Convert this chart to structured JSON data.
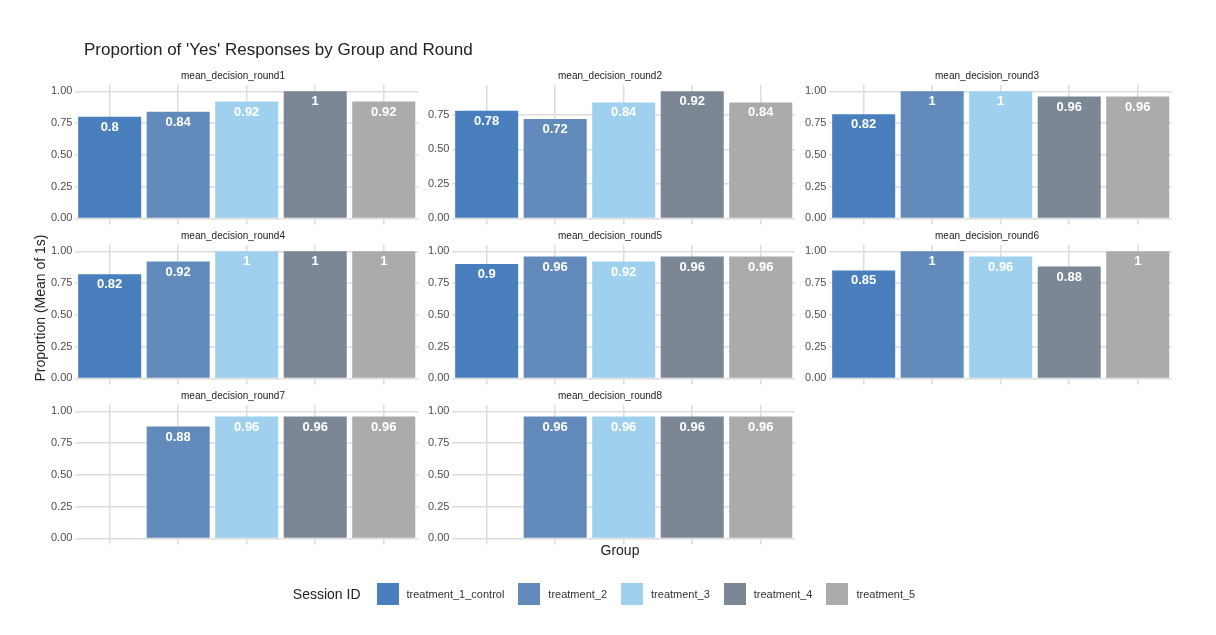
{
  "chart_data": [
    {
      "type": "bar",
      "title": "Proportion of 'Yes' Responses by Group and Round",
      "subtitle": "mean_decision_round1",
      "categories": [
        null,
        null,
        null,
        null,
        null
      ],
      "stacked": true,
      "data_labels": true,
      "grid": true,
      "tick_labels": "y",
      "ylim": [
        0,
        1.05
      ],
      "yticks": [
        {
          "value": 0,
          "label": "0.00"
        },
        {
          "value": 0.25,
          "label": "0.25"
        },
        {
          "value": 0.5,
          "label": "0.50"
        },
        {
          "value": 0.75,
          "label": "0.75"
        },
        {
          "value": 1,
          "label": "1.00"
        }
      ],
      "series": [
        {
          "color": "#4a7fbd",
          "values": [
            0.8,
            null,
            null,
            null,
            null
          ]
        },
        {
          "color": "#628abb",
          "values": [
            null,
            0.84,
            null,
            null,
            null
          ]
        },
        {
          "color": "#9fd1ef",
          "values": [
            null,
            null,
            0.92,
            null,
            null
          ]
        },
        {
          "color": "#7c8796",
          "values": [
            null,
            null,
            null,
            1,
            null
          ]
        },
        {
          "color": "#ababab",
          "values": [
            null,
            null,
            null,
            null,
            0.92
          ]
        }
      ]
    },
    {
      "type": "bar",
      "subtitle": "mean_decision_round2",
      "categories": [
        null,
        null,
        null,
        null,
        null
      ],
      "stacked": true,
      "data_labels": true,
      "grid": true,
      "tick_labels": "y",
      "ylim": [
        0,
        0.966
      ],
      "yticks": [
        {
          "value": 0,
          "label": "0.00"
        },
        {
          "value": 0.25,
          "label": "0.25"
        },
        {
          "value": 0.5,
          "label": "0.50"
        },
        {
          "value": 0.75,
          "label": "0.75"
        }
      ],
      "series": [
        {
          "color": "#4a7fbd",
          "values": [
            0.78,
            null,
            null,
            null,
            null
          ]
        },
        {
          "color": "#628abb",
          "values": [
            null,
            0.72,
            null,
            null,
            null
          ]
        },
        {
          "color": "#9fd1ef",
          "values": [
            null,
            null,
            0.84,
            null,
            null
          ]
        },
        {
          "color": "#7c8796",
          "values": [
            null,
            null,
            null,
            0.92,
            null
          ]
        },
        {
          "color": "#ababab",
          "values": [
            null,
            null,
            null,
            null,
            0.84
          ]
        }
      ]
    },
    {
      "type": "bar",
      "subtitle": "mean_decision_round3",
      "categories": [
        null,
        null,
        null,
        null,
        null
      ],
      "stacked": true,
      "data_labels": true,
      "grid": true,
      "tick_labels": "y",
      "ylim": [
        0,
        1.05
      ],
      "yticks": [
        {
          "value": 0,
          "label": "0.00"
        },
        {
          "value": 0.25,
          "label": "0.25"
        },
        {
          "value": 0.5,
          "label": "0.50"
        },
        {
          "value": 0.75,
          "label": "0.75"
        },
        {
          "value": 1,
          "label": "1.00"
        }
      ],
      "series": [
        {
          "color": "#4a7fbd",
          "values": [
            0.82,
            null,
            null,
            null,
            null
          ]
        },
        {
          "color": "#628abb",
          "values": [
            null,
            1,
            null,
            null,
            null
          ]
        },
        {
          "color": "#9fd1ef",
          "values": [
            null,
            null,
            1,
            null,
            null
          ]
        },
        {
          "color": "#7c8796",
          "values": [
            null,
            null,
            null,
            0.96,
            null
          ]
        },
        {
          "color": "#ababab",
          "values": [
            null,
            null,
            null,
            null,
            0.96
          ]
        }
      ]
    },
    {
      "type": "bar",
      "subtitle": "mean_decision_round4",
      "ylabel": "Proportion (Mean of 1s)",
      "categories": [
        null,
        null,
        null,
        null,
        null
      ],
      "stacked": true,
      "data_labels": true,
      "grid": true,
      "tick_labels": "y",
      "ylim": [
        0,
        1.05
      ],
      "yticks": [
        {
          "value": 0,
          "label": "0.00"
        },
        {
          "value": 0.25,
          "label": "0.25"
        },
        {
          "value": 0.5,
          "label": "0.50"
        },
        {
          "value": 0.75,
          "label": "0.75"
        },
        {
          "value": 1,
          "label": "1.00"
        }
      ],
      "series": [
        {
          "color": "#4a7fbd",
          "values": [
            0.82,
            null,
            null,
            null,
            null
          ]
        },
        {
          "color": "#628abb",
          "values": [
            null,
            0.92,
            null,
            null,
            null
          ]
        },
        {
          "color": "#9fd1ef",
          "values": [
            null,
            null,
            1,
            null,
            null
          ]
        },
        {
          "color": "#7c8796",
          "values": [
            null,
            null,
            null,
            1,
            null
          ]
        },
        {
          "color": "#ababab",
          "values": [
            null,
            null,
            null,
            null,
            1
          ]
        }
      ]
    },
    {
      "type": "bar",
      "subtitle": "mean_decision_round5",
      "categories": [
        null,
        null,
        null,
        null,
        null
      ],
      "stacked": true,
      "data_labels": true,
      "grid": true,
      "tick_labels": "y",
      "ylim": [
        0,
        1.05
      ],
      "yticks": [
        {
          "value": 0,
          "label": "0.00"
        },
        {
          "value": 0.25,
          "label": "0.25"
        },
        {
          "value": 0.5,
          "label": "0.50"
        },
        {
          "value": 0.75,
          "label": "0.75"
        },
        {
          "value": 1,
          "label": "1.00"
        }
      ],
      "series": [
        {
          "color": "#4a7fbd",
          "values": [
            0.9,
            null,
            null,
            null,
            null
          ]
        },
        {
          "color": "#628abb",
          "values": [
            null,
            0.96,
            null,
            null,
            null
          ]
        },
        {
          "color": "#9fd1ef",
          "values": [
            null,
            null,
            0.92,
            null,
            null
          ]
        },
        {
          "color": "#7c8796",
          "values": [
            null,
            null,
            null,
            0.96,
            null
          ]
        },
        {
          "color": "#ababab",
          "values": [
            null,
            null,
            null,
            null,
            0.96
          ]
        }
      ]
    },
    {
      "type": "bar",
      "subtitle": "mean_decision_round6",
      "categories": [
        null,
        null,
        null,
        null,
        null
      ],
      "stacked": true,
      "data_labels": true,
      "grid": true,
      "tick_labels": "y",
      "ylim": [
        0,
        1.05
      ],
      "yticks": [
        {
          "value": 0,
          "label": "0.00"
        },
        {
          "value": 0.25,
          "label": "0.25"
        },
        {
          "value": 0.5,
          "label": "0.50"
        },
        {
          "value": 0.75,
          "label": "0.75"
        },
        {
          "value": 1,
          "label": "1.00"
        }
      ],
      "series": [
        {
          "color": "#4a7fbd",
          "values": [
            0.85,
            null,
            null,
            null,
            null
          ]
        },
        {
          "color": "#628abb",
          "values": [
            null,
            1,
            null,
            null,
            null
          ]
        },
        {
          "color": "#9fd1ef",
          "values": [
            null,
            null,
            0.96,
            null,
            null
          ]
        },
        {
          "color": "#7c8796",
          "values": [
            null,
            null,
            null,
            0.88,
            null
          ]
        },
        {
          "color": "#ababab",
          "values": [
            null,
            null,
            null,
            null,
            1
          ]
        }
      ]
    },
    {
      "type": "bar",
      "subtitle": "mean_decision_round7",
      "categories": [
        null,
        null,
        null,
        null,
        null
      ],
      "stacked": true,
      "data_labels": true,
      "grid": true,
      "tick_labels": "y",
      "ylim": [
        0,
        1.05
      ],
      "yticks": [
        {
          "value": 0,
          "label": "0.00"
        },
        {
          "value": 0.25,
          "label": "0.25"
        },
        {
          "value": 0.5,
          "label": "0.50"
        },
        {
          "value": 0.75,
          "label": "0.75"
        },
        {
          "value": 1,
          "label": "1.00"
        }
      ],
      "series": [
        {
          "color": "#4a7fbd",
          "values": [
            null,
            null,
            null,
            null,
            null
          ]
        },
        {
          "color": "#628abb",
          "values": [
            null,
            0.88,
            null,
            null,
            null
          ]
        },
        {
          "color": "#9fd1ef",
          "values": [
            null,
            null,
            0.96,
            null,
            null
          ]
        },
        {
          "color": "#7c8796",
          "values": [
            null,
            null,
            null,
            0.96,
            null
          ]
        },
        {
          "color": "#ababab",
          "values": [
            null,
            null,
            null,
            null,
            0.96
          ]
        }
      ]
    },
    {
      "type": "bar",
      "subtitle": "mean_decision_round8",
      "xlabel": "Group",
      "legend": "bottom",
      "legend_title": "Session ID",
      "categories": [
        null,
        null,
        null,
        null,
        null
      ],
      "stacked": true,
      "data_labels": true,
      "grid": true,
      "tick_labels": "y",
      "ylim": [
        0,
        1.05
      ],
      "yticks": [
        {
          "value": 0,
          "label": "0.00"
        },
        {
          "value": 0.25,
          "label": "0.25"
        },
        {
          "value": 0.5,
          "label": "0.50"
        },
        {
          "value": 0.75,
          "label": "0.75"
        },
        {
          "value": 1,
          "label": "1.00"
        }
      ],
      "series": [
        {
          "name": "treatment_1_control",
          "color": "#4a7fbd",
          "values": [
            null,
            null,
            null,
            null,
            null
          ]
        },
        {
          "name": "treatment_2",
          "color": "#628abb",
          "values": [
            null,
            0.96,
            null,
            null,
            null
          ]
        },
        {
          "name": "treatment_3",
          "color": "#9fd1ef",
          "values": [
            null,
            null,
            0.96,
            null,
            null
          ]
        },
        {
          "name": "treatment_4",
          "color": "#7c8796",
          "values": [
            null,
            null,
            null,
            0.96,
            null
          ]
        },
        {
          "name": "treatment_5",
          "color": "#ababab",
          "values": [
            null,
            null,
            null,
            null,
            0.96
          ]
        }
      ]
    }
  ]
}
